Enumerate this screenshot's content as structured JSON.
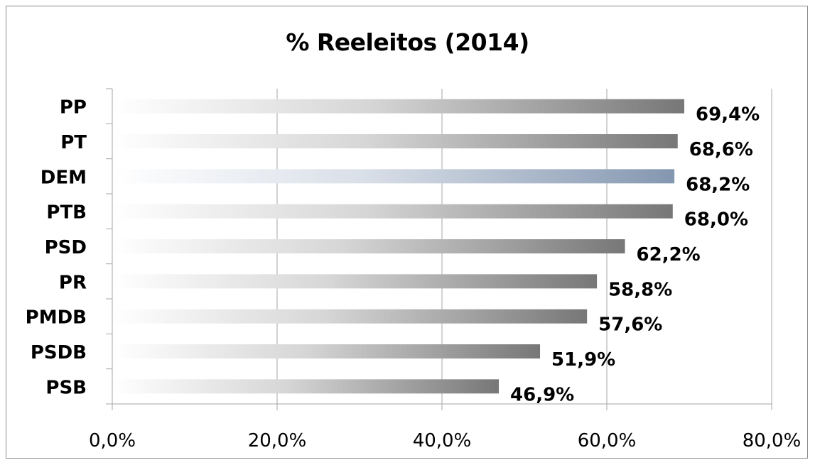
{
  "chart_data": {
    "type": "bar",
    "orientation": "horizontal",
    "title": "% Reeleitos (2014)",
    "categories": [
      "PP",
      "PT",
      "DEM",
      "PTB",
      "PSD",
      "PR",
      "PMDB",
      "PSDB",
      "PSB"
    ],
    "values": [
      69.4,
      68.6,
      68.2,
      68.0,
      62.2,
      58.8,
      57.6,
      51.9,
      46.9
    ],
    "data_labels": [
      "69,4%",
      "68,6%",
      "68,2%",
      "68,0%",
      "62,2%",
      "58,8%",
      "57,6%",
      "51,9%",
      "46,9%"
    ],
    "xlim": [
      0,
      80
    ],
    "x_ticks": [
      0,
      20,
      40,
      60,
      80
    ],
    "x_tick_labels": [
      "0,0%",
      "20,0%",
      "40,0%",
      "60,0%",
      "80,0%"
    ],
    "grid": "vertical",
    "legend": "none",
    "bar_fill": "gradient white-to-grey",
    "bar_colors": {
      "default_end": "#7a7a7a",
      "highlight_end": "#8497b0",
      "highlight_category": "DEM",
      "start": "#ffffff"
    },
    "axis_color": "#a6a6a6",
    "grid_color": "#a6a6a6"
  }
}
